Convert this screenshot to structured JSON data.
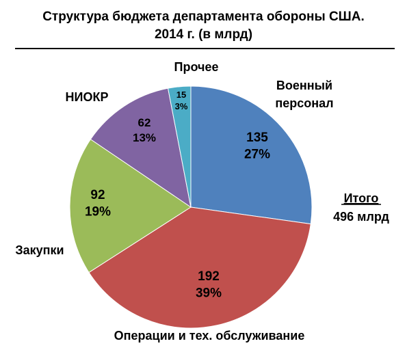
{
  "chart_data": {
    "type": "pie",
    "title_line1": "Структура бюджета департамента обороны США.",
    "title_line2": "2014 г. (в млрд)",
    "total": {
      "label": "Итого",
      "value": "496 млрд"
    },
    "slices": [
      {
        "name": "Военный персонал",
        "name_lines": [
          "Военный",
          "персонал"
        ],
        "value": 135,
        "value_text": "135",
        "percent_text": "27%",
        "color": "#4f81bd"
      },
      {
        "name": "Операции и тех. обслуживание",
        "name_lines": [
          "Операции и тех. обслуживание"
        ],
        "value": 192,
        "value_text": "192",
        "percent_text": "39%",
        "color": "#c0504d"
      },
      {
        "name": "Закупки",
        "name_lines": [
          "Закупки"
        ],
        "value": 92,
        "value_text": "92",
        "percent_text": "19%",
        "color": "#9bbb59"
      },
      {
        "name": "НИОКР",
        "name_lines": [
          "НИОКР"
        ],
        "value": 62,
        "value_text": "62",
        "percent_text": "13%",
        "color": "#8064a2"
      },
      {
        "name": "Прочее",
        "name_lines": [
          "Прочее"
        ],
        "value": 15,
        "value_text": "15",
        "percent_text": "3%",
        "color": "#4bacc6"
      }
    ]
  }
}
